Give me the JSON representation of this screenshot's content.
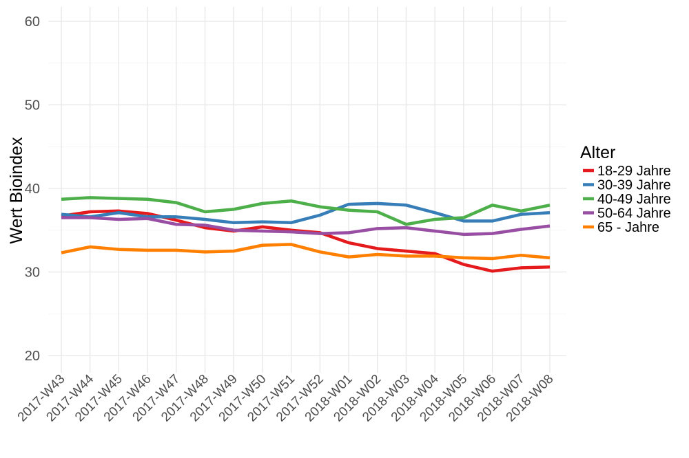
{
  "chart_data": {
    "type": "line",
    "xlabel": "",
    "ylabel": "Wert Bioindex",
    "ylim": [
      18,
      62
    ],
    "yticks": [
      20,
      30,
      40,
      50,
      60
    ],
    "grid": true,
    "legend": {
      "title": "Alter",
      "position": "right"
    },
    "categories": [
      "2017-W43",
      "2017-W44",
      "2017-W45",
      "2017-W46",
      "2017-W47",
      "2017-W48",
      "2017-W49",
      "2017-W50",
      "2017-W51",
      "2017-W52",
      "2018-W01",
      "2018-W02",
      "2018-W03",
      "2018-W04",
      "2018-W05",
      "2018-W06",
      "2018-W07",
      "2018-W08"
    ],
    "series": [
      {
        "name": "18-29 Jahre",
        "color": "#e41a1c",
        "values": [
          36.7,
          37.2,
          37.3,
          37.0,
          36.2,
          35.3,
          34.9,
          35.4,
          35.0,
          34.7,
          33.5,
          32.8,
          32.5,
          32.2,
          30.9,
          30.1,
          30.5,
          30.6
        ]
      },
      {
        "name": "30-39 Jahre",
        "color": "#377eb8",
        "values": [
          36.9,
          36.6,
          37.1,
          36.6,
          36.6,
          36.3,
          35.9,
          36.0,
          35.9,
          36.8,
          38.1,
          38.2,
          38.0,
          37.1,
          36.1,
          36.1,
          36.9,
          37.1
        ]
      },
      {
        "name": "40-49 Jahre",
        "color": "#4daf4a",
        "values": [
          38.7,
          38.9,
          38.8,
          38.7,
          38.3,
          37.2,
          37.5,
          38.2,
          38.5,
          37.8,
          37.4,
          37.2,
          35.7,
          36.3,
          36.5,
          38.0,
          37.3,
          38.0
        ]
      },
      {
        "name": "50-64 Jahre",
        "color": "#984ea3",
        "values": [
          36.5,
          36.5,
          36.3,
          36.4,
          35.7,
          35.6,
          35.0,
          34.9,
          34.8,
          34.6,
          34.7,
          35.2,
          35.3,
          34.9,
          34.5,
          34.6,
          35.1,
          35.5
        ]
      },
      {
        "name": "65 - Jahre",
        "color": "#ff7f00",
        "values": [
          32.3,
          33.0,
          32.7,
          32.6,
          32.6,
          32.4,
          32.5,
          33.2,
          33.3,
          32.4,
          31.8,
          32.1,
          31.9,
          31.9,
          31.7,
          31.6,
          32.0,
          31.7
        ]
      }
    ]
  }
}
